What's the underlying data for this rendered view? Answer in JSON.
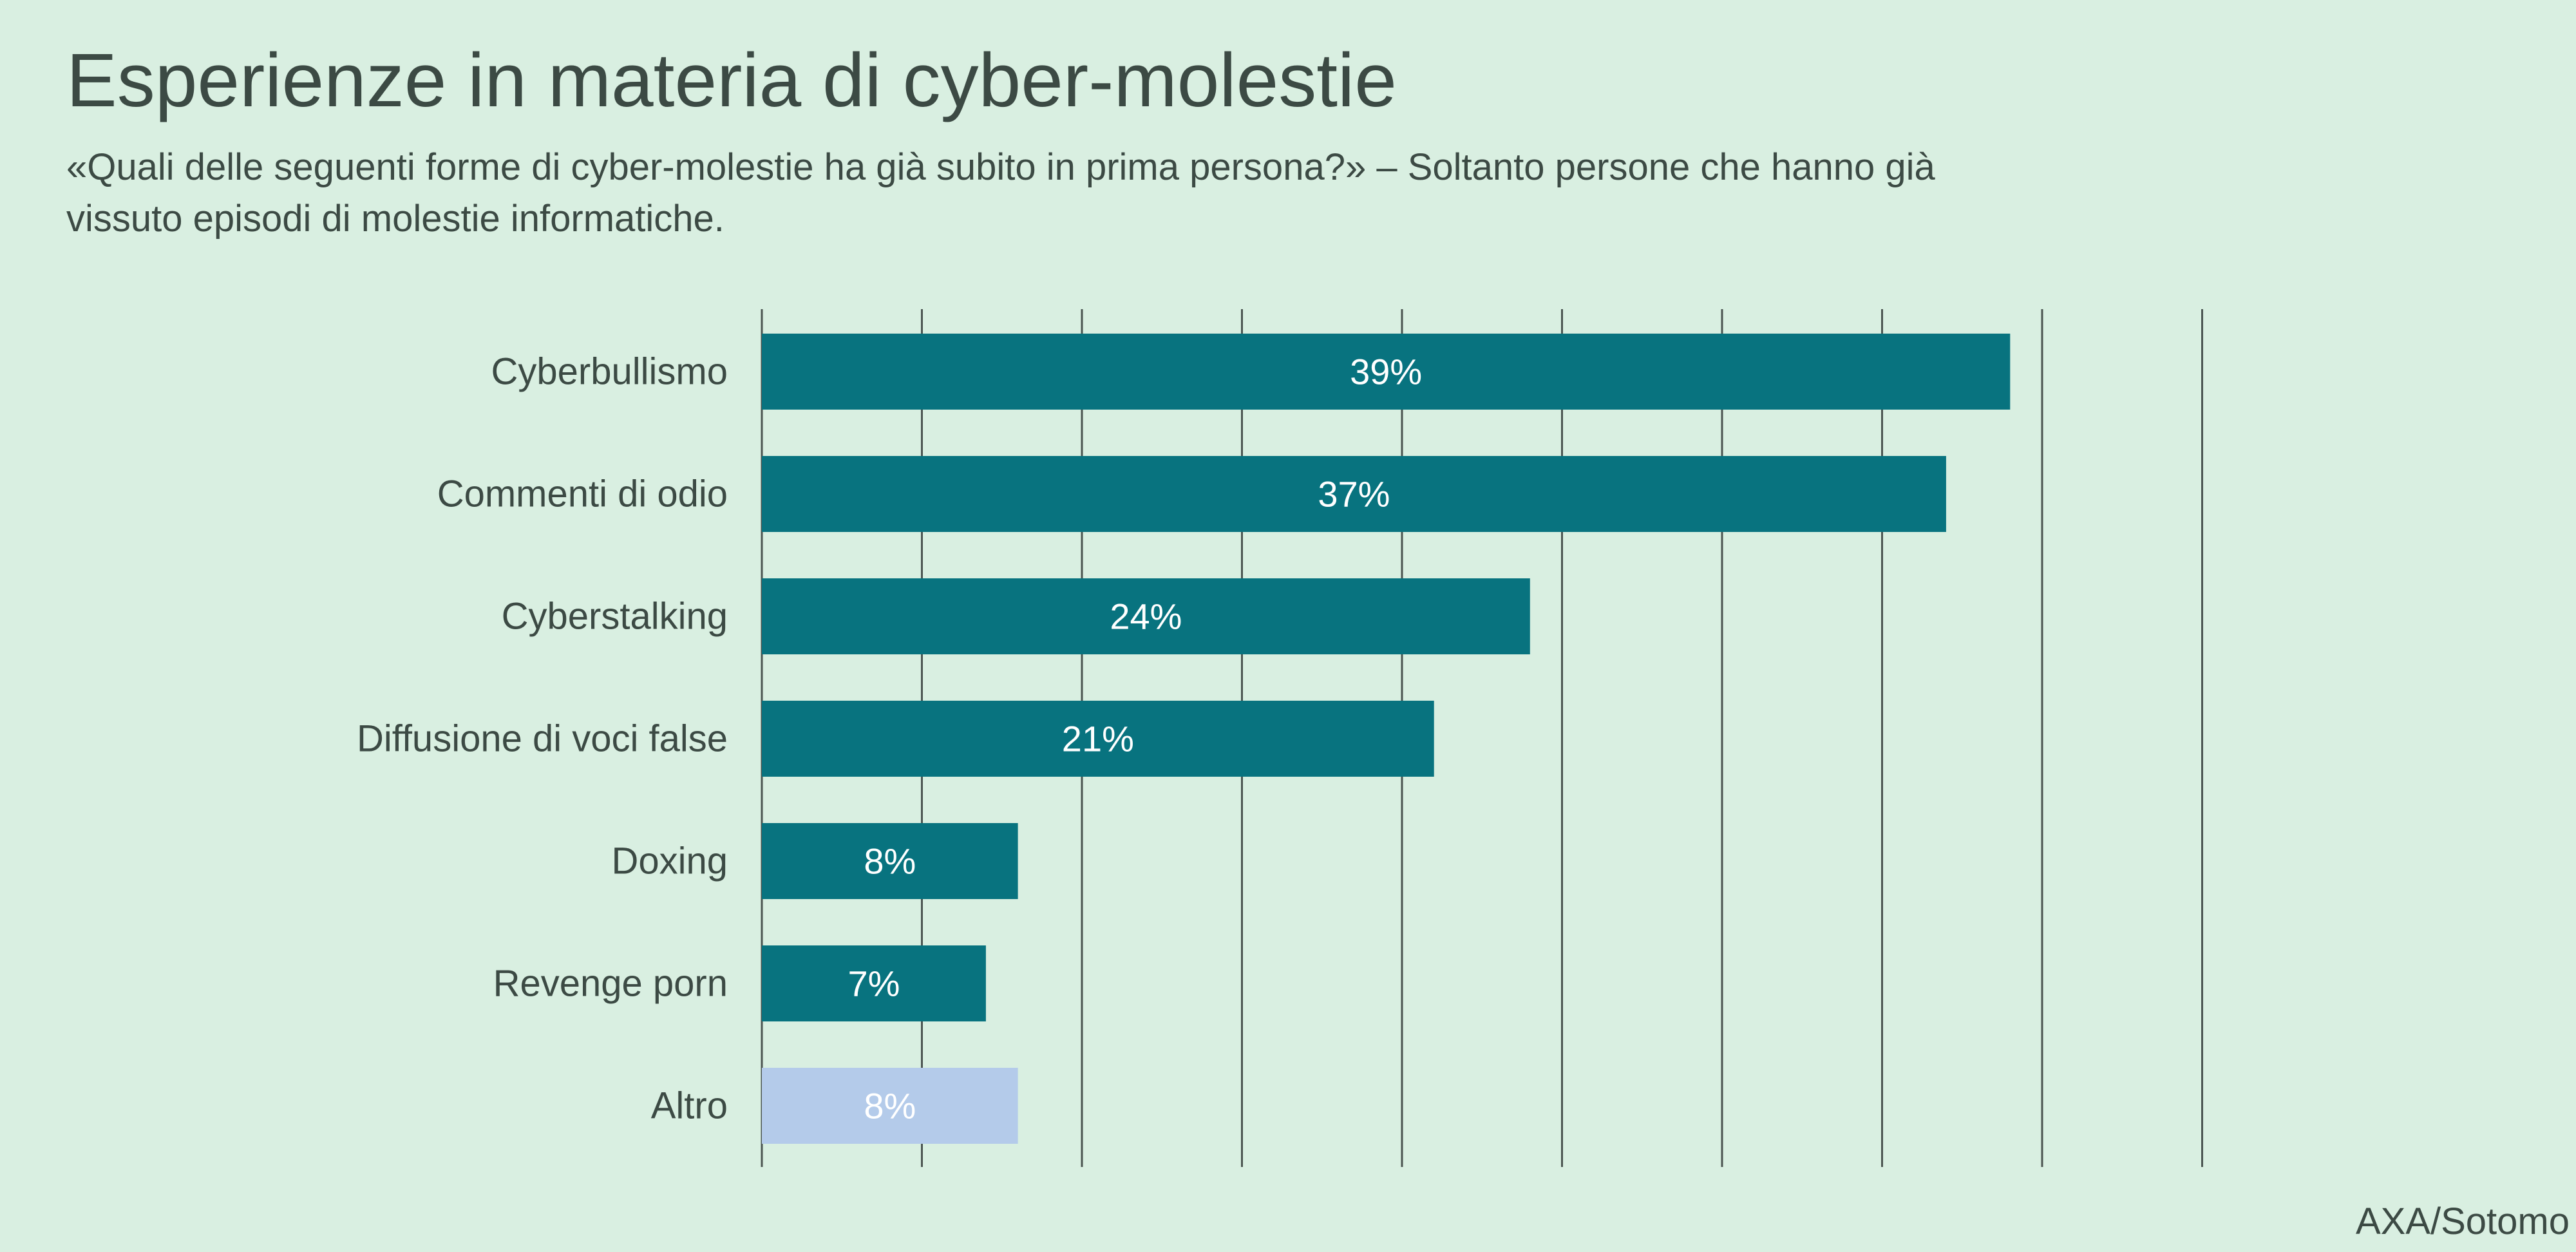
{
  "title": "Esperienze in materia di cyber-molestie",
  "subtitle": "«Quali delle seguenti forme di cyber-molestie ha già subito in prima persona?» – Soltanto persone che hanno già vissuto episodi di molestie informatiche.",
  "source": "AXA/Sotomo",
  "colors": {
    "bar": "#08737f",
    "bar_other": "#b4cbea",
    "grid": "#4a5450",
    "text": "#3c4a44",
    "background": "#d9efe1"
  },
  "chart_data": {
    "type": "bar",
    "orientation": "horizontal",
    "title": "Esperienze in materia di cyber-molestie",
    "categories": [
      "Cyberbullismo",
      "Commenti di odio",
      "Cyberstalking",
      "Diffusione di voci false",
      "Doxing",
      "Revenge porn",
      "Altro"
    ],
    "values": [
      39,
      37,
      24,
      21,
      8,
      7,
      8
    ],
    "labels": [
      "39%",
      "37%",
      "24%",
      "21%",
      "8%",
      "7%",
      "8%"
    ],
    "bar_colors": [
      "#08737f",
      "#08737f",
      "#08737f",
      "#08737f",
      "#08737f",
      "#08737f",
      "#b4cbea"
    ],
    "xlim": [
      0,
      45
    ],
    "grid": true,
    "xlabel": "",
    "ylabel": ""
  }
}
